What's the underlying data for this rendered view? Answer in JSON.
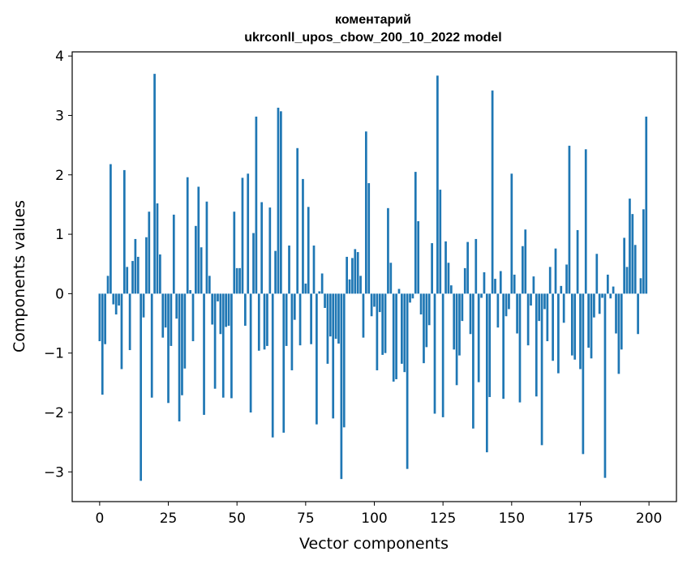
{
  "chart_data": {
    "type": "bar",
    "title": "коментарий",
    "subtitle": "ukrconll_upos_cbow_200_10_2022 model",
    "xlabel": "Vector components",
    "ylabel": "Components values",
    "xlim": [
      -10,
      210
    ],
    "ylim": [
      -3.5,
      4.07
    ],
    "xticks": [
      0,
      25,
      50,
      75,
      100,
      125,
      150,
      175,
      200
    ],
    "xtick_labels": [
      "0",
      "25",
      "50",
      "75",
      "100",
      "125",
      "150",
      "175",
      "200"
    ],
    "yticks": [
      -3,
      -2,
      -1,
      0,
      1,
      2,
      3,
      4
    ],
    "ytick_labels": [
      "−3",
      "−2",
      "−1",
      "0",
      "1",
      "2",
      "3",
      "4"
    ],
    "bar_color": "#1f77b4",
    "x": [
      0,
      1,
      2,
      3,
      4,
      5,
      6,
      7,
      8,
      9,
      10,
      11,
      12,
      13,
      14,
      15,
      16,
      17,
      18,
      19,
      20,
      21,
      22,
      23,
      24,
      25,
      26,
      27,
      28,
      29,
      30,
      31,
      32,
      33,
      34,
      35,
      36,
      37,
      38,
      39,
      40,
      41,
      42,
      43,
      44,
      45,
      46,
      47,
      48,
      49,
      50,
      51,
      52,
      53,
      54,
      55,
      56,
      57,
      58,
      59,
      60,
      61,
      62,
      63,
      64,
      65,
      66,
      67,
      68,
      69,
      70,
      71,
      72,
      73,
      74,
      75,
      76,
      77,
      78,
      79,
      80,
      81,
      82,
      83,
      84,
      85,
      86,
      87,
      88,
      89,
      90,
      91,
      92,
      93,
      94,
      95,
      96,
      97,
      98,
      99,
      100,
      101,
      102,
      103,
      104,
      105,
      106,
      107,
      108,
      109,
      110,
      111,
      112,
      113,
      114,
      115,
      116,
      117,
      118,
      119,
      120,
      121,
      122,
      123,
      124,
      125,
      126,
      127,
      128,
      129,
      130,
      131,
      132,
      133,
      134,
      135,
      136,
      137,
      138,
      139,
      140,
      141,
      142,
      143,
      144,
      145,
      146,
      147,
      148,
      149,
      150,
      151,
      152,
      153,
      154,
      155,
      156,
      157,
      158,
      159,
      160,
      161,
      162,
      163,
      164,
      165,
      166,
      167,
      168,
      169,
      170,
      171,
      172,
      173,
      174,
      175,
      176,
      177,
      178,
      179,
      180,
      181,
      182,
      183,
      184,
      185,
      186,
      187,
      188,
      189,
      190,
      191,
      192,
      193,
      194,
      195,
      196,
      197,
      198,
      199
    ],
    "values": [
      -0.8,
      -1.7,
      -0.85,
      0.3,
      2.18,
      -0.18,
      -0.35,
      -0.2,
      -1.27,
      2.08,
      0.45,
      -0.95,
      0.55,
      0.92,
      0.62,
      -3.15,
      -0.4,
      0.95,
      1.38,
      -1.75,
      3.7,
      1.52,
      0.66,
      -0.74,
      -0.57,
      -1.84,
      -0.88,
      1.33,
      -0.42,
      -2.15,
      -1.71,
      -1.26,
      1.96,
      0.06,
      -0.8,
      1.14,
      1.8,
      0.78,
      -2.04,
      1.55,
      0.3,
      -0.52,
      -1.6,
      -0.13,
      -0.68,
      -1.75,
      -0.56,
      -0.54,
      -1.76,
      1.38,
      0.43,
      0.43,
      1.95,
      -0.54,
      2.02,
      -2.0,
      1.02,
      2.98,
      -0.96,
      1.54,
      -0.94,
      -0.88,
      1.45,
      -2.42,
      0.72,
      3.13,
      3.07,
      -2.34,
      -0.88,
      0.81,
      -1.29,
      -0.44,
      2.45,
      -0.87,
      1.93,
      0.17,
      1.46,
      -0.85,
      0.81,
      -2.2,
      0.04,
      0.34,
      -0.24,
      -1.18,
      -0.72,
      -2.1,
      -0.76,
      -0.84,
      -3.12,
      -2.25,
      0.62,
      0.24,
      0.6,
      0.75,
      0.7,
      0.3,
      -0.74,
      2.73,
      1.86,
      -0.38,
      -0.22,
      -1.29,
      -0.31,
      -1.03,
      -1.0,
      1.44,
      0.52,
      -1.48,
      -1.44,
      0.08,
      -1.18,
      -1.32,
      -2.95,
      -0.15,
      -0.08,
      2.05,
      1.22,
      -0.35,
      -1.17,
      -0.9,
      -0.53,
      0.85,
      -2.02,
      3.67,
      1.75,
      -2.08,
      0.88,
      0.52,
      0.14,
      -0.94,
      -1.54,
      -1.04,
      -0.46,
      0.43,
      0.87,
      -0.68,
      -2.27,
      0.92,
      -1.49,
      -0.07,
      0.36,
      -2.67,
      -1.74,
      3.42,
      0.25,
      -0.57,
      0.38,
      -1.77,
      -0.38,
      -0.26,
      2.02,
      0.32,
      -0.67,
      -1.83,
      0.8,
      1.08,
      -0.87,
      -0.2,
      0.29,
      -1.73,
      -0.46,
      -2.55,
      -0.26,
      -0.8,
      0.45,
      -1.13,
      0.76,
      -1.34,
      0.13,
      -0.49,
      0.49,
      2.49,
      -1.04,
      -1.11,
      1.07,
      -1.27,
      -2.7,
      2.43,
      -0.91,
      -1.09,
      -0.4,
      0.67,
      -0.34,
      -0.07,
      -3.1,
      0.32,
      -0.08,
      0.12,
      -0.67,
      -1.35,
      -0.94,
      0.94,
      0.45,
      1.6,
      1.34,
      0.82,
      -0.68,
      0.26,
      1.42,
      2.98
    ]
  }
}
